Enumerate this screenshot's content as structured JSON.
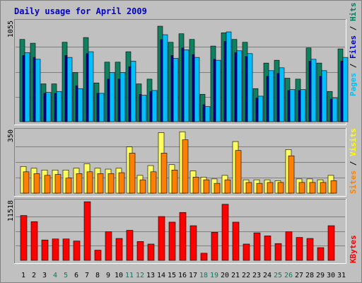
{
  "chart_data": {
    "type": "bar",
    "title": "Daily usage for April 2009",
    "days": [
      "1",
      "2",
      "3",
      "4",
      "5",
      "6",
      "7",
      "8",
      "9",
      "10",
      "11",
      "12",
      "13",
      "14",
      "15",
      "16",
      "17",
      "18",
      "19",
      "20",
      "21",
      "22",
      "23",
      "24",
      "25",
      "26",
      "27",
      "28",
      "29",
      "30",
      "31"
    ],
    "weekend_days": [
      "4",
      "5",
      "11",
      "12",
      "18",
      "19",
      "25",
      "26"
    ],
    "panels": [
      {
        "name": "hits-files-pages",
        "ymax_label": "1055",
        "ymax": 1055,
        "side_labels": [
          {
            "text": "Pages",
            "color": "#00c0ff"
          },
          {
            "text": " / ",
            "color": "#000000"
          },
          {
            "text": "Files",
            "color": "#0000cc"
          },
          {
            "text": " / ",
            "color": "#000000"
          },
          {
            "text": "Hits",
            "color": "#008060"
          }
        ],
        "series": [
          {
            "name": "Hits",
            "color": "#108060",
            "values": [
              870,
              830,
              400,
              400,
              840,
              520,
              890,
              410,
              630,
              630,
              740,
              400,
              450,
              1010,
              840,
              930,
              870,
              290,
              800,
              940,
              870,
              840,
              350,
              620,
              650,
              460,
              450,
              780,
              620,
              320,
              770
            ]
          },
          {
            "name": "Files",
            "color": "#0000a0",
            "values": [
              700,
              680,
              300,
              300,
              700,
              380,
              720,
              300,
              450,
              450,
              580,
              290,
              320,
              870,
              700,
              780,
              710,
              180,
              660,
              850,
              730,
              690,
              250,
              480,
              510,
              330,
              330,
              640,
              480,
              240,
              640
            ]
          },
          {
            "name": "Pages",
            "color": "#00c0ff",
            "values": [
              730,
              660,
              310,
              320,
              680,
              350,
              740,
              300,
              520,
              520,
              640,
              280,
              330,
              920,
              670,
              760,
              680,
              160,
              650,
              950,
              750,
              720,
              270,
              540,
              570,
              340,
              340,
              660,
              540,
              250,
              680
            ]
          }
        ]
      },
      {
        "name": "visits-sites",
        "ymax_label": "350",
        "ymax": 350,
        "side_labels": [
          {
            "text": "Sites",
            "color": "#ff8000"
          },
          {
            "text": " / ",
            "color": "#000000"
          },
          {
            "text": "Visits",
            "color": "#ffff00"
          }
        ],
        "series": [
          {
            "name": "Visits",
            "color": "#ffff60",
            "values": [
              150,
              140,
              130,
              130,
              130,
              140,
              165,
              140,
              135,
              140,
              260,
              100,
              155,
              340,
              160,
              345,
              125,
              90,
              80,
              100,
              290,
              75,
              75,
              75,
              70,
              245,
              80,
              80,
              75,
              100,
              0
            ]
          },
          {
            "name": "Sites",
            "color": "#ff8000",
            "values": [
              120,
              110,
              100,
              105,
              85,
              110,
              120,
              110,
              110,
              115,
              225,
              75,
              120,
              225,
              130,
              300,
              90,
              75,
              55,
              75,
              240,
              60,
              55,
              60,
              60,
              210,
              60,
              60,
              60,
              70,
              0
            ]
          }
        ]
      },
      {
        "name": "kbytes",
        "ymax_label": "11518",
        "ymax": 11518,
        "side_labels": [
          {
            "text": "KBytes",
            "color": "#ff0000"
          }
        ],
        "series": [
          {
            "name": "KBytes",
            "color": "#ff0000",
            "values": [
              8800,
              7600,
              4000,
              4200,
              4200,
              3800,
              11500,
              2000,
              5600,
              4300,
              5900,
              3700,
              3200,
              8600,
              7500,
              9400,
              6800,
              1400,
              5500,
              11000,
              7500,
              3200,
              5400,
              4800,
              3300,
              5600,
              4500,
              4300,
              2500,
              6800,
              0
            ]
          }
        ]
      }
    ]
  }
}
